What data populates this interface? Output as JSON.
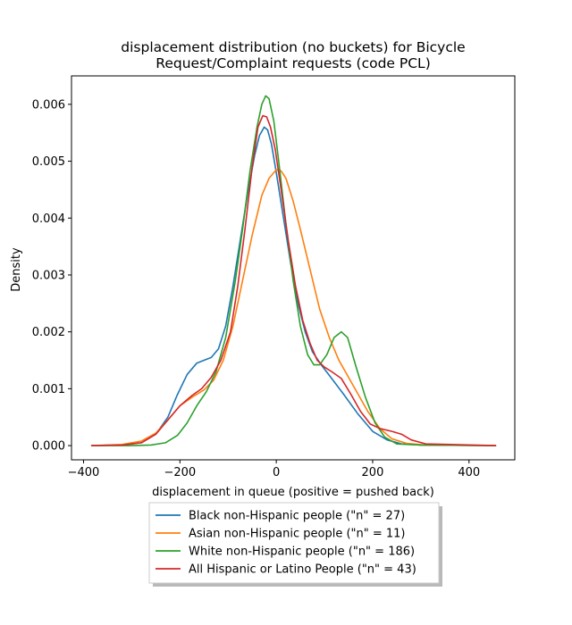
{
  "chart_data": {
    "type": "line",
    "title_line1": "displacement distribution (no buckets)  for Bicycle",
    "title_line2": "Request/Complaint requests (code PCL)",
    "xlabel": "displacement in queue (positive = pushed back)",
    "ylabel": "Density",
    "xlim": [
      -425,
      495
    ],
    "ylim": [
      -0.00025,
      0.0065
    ],
    "xticks": [
      -400,
      -200,
      0,
      200,
      400
    ],
    "xtick_labels": [
      "−400",
      "−200",
      "0",
      "200",
      "400"
    ],
    "yticks": [
      0.0,
      0.001,
      0.002,
      0.003,
      0.004,
      0.005,
      0.006
    ],
    "ytick_labels": [
      "0.000",
      "0.001",
      "0.002",
      "0.003",
      "0.004",
      "0.005",
      "0.006"
    ],
    "grid": false,
    "legend_position": "below plot",
    "series": [
      {
        "name": "Black non-Hispanic people (\"n\" = 27)",
        "color": "#1f77b4",
        "points": [
          [
            -383,
            0
          ],
          [
            -320,
            1e-05
          ],
          [
            -280,
            5e-05
          ],
          [
            -250,
            0.0002
          ],
          [
            -225,
            0.0005
          ],
          [
            -205,
            0.0009
          ],
          [
            -185,
            0.00125
          ],
          [
            -165,
            0.00145
          ],
          [
            -150,
            0.0015
          ],
          [
            -135,
            0.00155
          ],
          [
            -120,
            0.0017
          ],
          [
            -105,
            0.0021
          ],
          [
            -90,
            0.0028
          ],
          [
            -75,
            0.0036
          ],
          [
            -60,
            0.0044
          ],
          [
            -45,
            0.0051
          ],
          [
            -35,
            0.00545
          ],
          [
            -25,
            0.0056
          ],
          [
            -18,
            0.00555
          ],
          [
            -10,
            0.0053
          ],
          [
            0,
            0.0048
          ],
          [
            15,
            0.004
          ],
          [
            30,
            0.0032
          ],
          [
            45,
            0.0025
          ],
          [
            60,
            0.002
          ],
          [
            75,
            0.00165
          ],
          [
            95,
            0.0014
          ],
          [
            115,
            0.00118
          ],
          [
            140,
            0.0009
          ],
          [
            170,
            0.00055
          ],
          [
            200,
            0.00025
          ],
          [
            230,
            0.0001
          ],
          [
            260,
            3e-05
          ],
          [
            300,
            1e-05
          ],
          [
            455,
            0
          ]
        ]
      },
      {
        "name": "Asian non-Hispanic people (\"n\" = 11)",
        "color": "#ff7f0e",
        "points": [
          [
            -383,
            0
          ],
          [
            -320,
            2e-05
          ],
          [
            -280,
            8e-05
          ],
          [
            -250,
            0.00022
          ],
          [
            -225,
            0.00045
          ],
          [
            -200,
            0.0007
          ],
          [
            -175,
            0.00085
          ],
          [
            -150,
            0.00098
          ],
          [
            -130,
            0.00115
          ],
          [
            -110,
            0.0015
          ],
          [
            -90,
            0.0021
          ],
          [
            -70,
            0.0029
          ],
          [
            -50,
            0.0037
          ],
          [
            -30,
            0.0044
          ],
          [
            -15,
            0.0047
          ],
          [
            0,
            0.00485
          ],
          [
            10,
            0.00483
          ],
          [
            20,
            0.0047
          ],
          [
            35,
            0.0043
          ],
          [
            50,
            0.0038
          ],
          [
            70,
            0.0031
          ],
          [
            90,
            0.0024
          ],
          [
            110,
            0.0019
          ],
          [
            130,
            0.0015
          ],
          [
            150,
            0.0012
          ],
          [
            170,
            0.0009
          ],
          [
            190,
            0.0006
          ],
          [
            215,
            0.0003
          ],
          [
            240,
            0.00012
          ],
          [
            270,
            4e-05
          ],
          [
            310,
            1e-05
          ],
          [
            455,
            0
          ]
        ]
      },
      {
        "name": "White non-Hispanic people (\"n\" = 186)",
        "color": "#2ca02c",
        "points": [
          [
            -383,
            0
          ],
          [
            -300,
            0
          ],
          [
            -260,
            1e-05
          ],
          [
            -230,
            5e-05
          ],
          [
            -205,
            0.00018
          ],
          [
            -185,
            0.0004
          ],
          [
            -165,
            0.0007
          ],
          [
            -145,
            0.00095
          ],
          [
            -125,
            0.0013
          ],
          [
            -105,
            0.0019
          ],
          [
            -85,
            0.0029
          ],
          [
            -70,
            0.0038
          ],
          [
            -55,
            0.0048
          ],
          [
            -40,
            0.0056
          ],
          [
            -30,
            0.006
          ],
          [
            -22,
            0.00615
          ],
          [
            -15,
            0.0061
          ],
          [
            -5,
            0.0057
          ],
          [
            5,
            0.005
          ],
          [
            20,
            0.0039
          ],
          [
            35,
            0.0029
          ],
          [
            50,
            0.0021
          ],
          [
            65,
            0.0016
          ],
          [
            78,
            0.00142
          ],
          [
            90,
            0.00142
          ],
          [
            105,
            0.0016
          ],
          [
            120,
            0.0019
          ],
          [
            135,
            0.002
          ],
          [
            148,
            0.0019
          ],
          [
            165,
            0.0014
          ],
          [
            185,
            0.00085
          ],
          [
            205,
            0.0004
          ],
          [
            225,
            0.00015
          ],
          [
            250,
            3e-05
          ],
          [
            300,
            1e-05
          ],
          [
            455,
            0
          ]
        ]
      },
      {
        "name": "All Hispanic or Latino People (\"n\" = 43)",
        "color": "#d62728",
        "points": [
          [
            -383,
            0
          ],
          [
            -320,
            1e-05
          ],
          [
            -280,
            5e-05
          ],
          [
            -250,
            0.0002
          ],
          [
            -225,
            0.00045
          ],
          [
            -200,
            0.0007
          ],
          [
            -175,
            0.00088
          ],
          [
            -155,
            0.001
          ],
          [
            -135,
            0.0012
          ],
          [
            -115,
            0.0015
          ],
          [
            -95,
            0.002
          ],
          [
            -80,
            0.0028
          ],
          [
            -65,
            0.0038
          ],
          [
            -50,
            0.0049
          ],
          [
            -38,
            0.0056
          ],
          [
            -28,
            0.0058
          ],
          [
            -20,
            0.00578
          ],
          [
            -12,
            0.0056
          ],
          [
            -2,
            0.0052
          ],
          [
            10,
            0.0045
          ],
          [
            25,
            0.0036
          ],
          [
            40,
            0.0028
          ],
          [
            55,
            0.0022
          ],
          [
            70,
            0.0018
          ],
          [
            85,
            0.0015
          ],
          [
            100,
            0.00138
          ],
          [
            115,
            0.0013
          ],
          [
            135,
            0.00118
          ],
          [
            155,
            0.0009
          ],
          [
            175,
            0.0006
          ],
          [
            195,
            0.00038
          ],
          [
            215,
            0.0003
          ],
          [
            240,
            0.00025
          ],
          [
            260,
            0.0002
          ],
          [
            280,
            0.0001
          ],
          [
            310,
            3e-05
          ],
          [
            455,
            0
          ]
        ]
      }
    ]
  }
}
